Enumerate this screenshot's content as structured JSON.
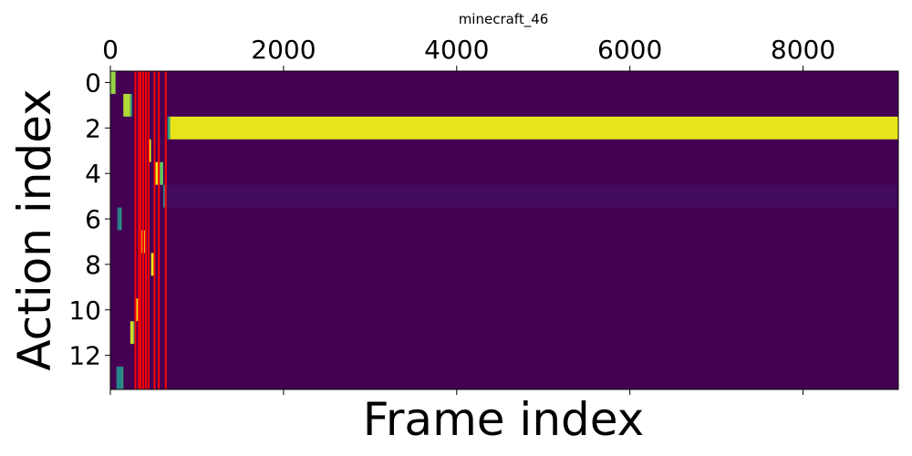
{
  "chart_data": {
    "type": "heatmap",
    "title": "minecraft_46",
    "xlabel": "Frame index",
    "ylabel": "Action index",
    "xlim": [
      0,
      9100
    ],
    "ylim": [
      13.5,
      -0.5
    ],
    "x_ticks": [
      0,
      2000,
      4000,
      6000,
      8000
    ],
    "x_tick_labels": [
      "0",
      "2000",
      "4000",
      "6000",
      "8000"
    ],
    "x_tick_position": "top",
    "y_ticks": [
      0,
      2,
      4,
      6,
      8,
      10,
      12
    ],
    "y_tick_labels": [
      "0",
      "2",
      "4",
      "6",
      "8",
      "10",
      "12"
    ],
    "rows": 14,
    "colormap": "viridis",
    "value_range": [
      0,
      1
    ],
    "background_color": "#440154",
    "cells": [
      {
        "row": 0,
        "x0": 0,
        "x1": 60,
        "value": 0.85
      },
      {
        "row": 1,
        "x0": 150,
        "x1": 230,
        "value": 0.9
      },
      {
        "row": 1,
        "x0": 230,
        "x1": 250,
        "value": 0.6
      },
      {
        "row": 2,
        "x0": 660,
        "x1": 690,
        "value": 0.55
      },
      {
        "row": 2,
        "x0": 690,
        "x1": 9100,
        "value": 1.0
      },
      {
        "row": 3,
        "x0": 440,
        "x1": 470,
        "value": 1.0
      },
      {
        "row": 4,
        "x0": 520,
        "x1": 570,
        "value": 1.0
      },
      {
        "row": 4,
        "x0": 570,
        "x1": 610,
        "value": 0.75
      },
      {
        "row": 5,
        "x0": 610,
        "x1": 650,
        "value": 0.45
      },
      {
        "row": 5,
        "x0": 650,
        "x1": 9100,
        "value": 0.03
      },
      {
        "row": 6,
        "x0": 80,
        "x1": 110,
        "value": 0.4
      },
      {
        "row": 6,
        "x0": 110,
        "x1": 130,
        "value": 0.55
      },
      {
        "row": 7,
        "x0": 360,
        "x1": 400,
        "value": 0.95
      },
      {
        "row": 8,
        "x0": 470,
        "x1": 500,
        "value": 1.0
      },
      {
        "row": 8,
        "x0": 500,
        "x1": 520,
        "value": 0.6
      },
      {
        "row": 10,
        "x0": 300,
        "x1": 320,
        "value": 1.0
      },
      {
        "row": 11,
        "x0": 230,
        "x1": 270,
        "value": 0.95
      },
      {
        "row": 11,
        "x0": 270,
        "x1": 285,
        "value": 0.5
      },
      {
        "row": 13,
        "x0": 70,
        "x1": 130,
        "value": 0.45
      },
      {
        "row": 13,
        "x0": 130,
        "x1": 150,
        "value": 0.55
      }
    ],
    "vertical_lines": {
      "color": "#ff0000",
      "x": [
        290,
        330,
        350,
        380,
        410,
        440,
        510,
        560,
        640
      ]
    }
  }
}
